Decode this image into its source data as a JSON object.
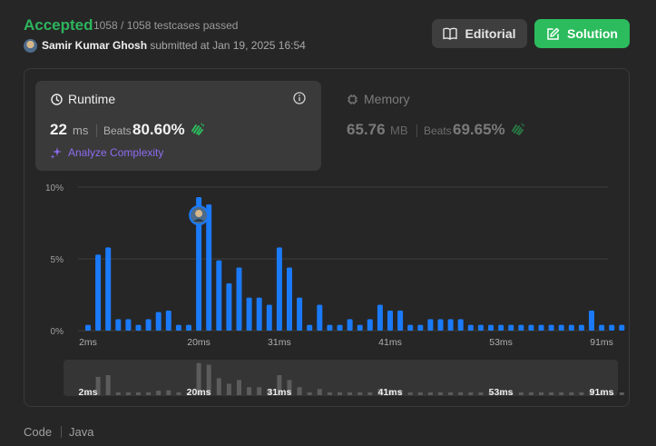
{
  "status": {
    "label": "Accepted",
    "testcases": "1058 / 1058 testcases passed"
  },
  "submission": {
    "user": "Samir Kumar Ghosh",
    "text": "submitted at Jan 19, 2025 16:54"
  },
  "buttons": {
    "editorial": "Editorial",
    "solution": "Solution"
  },
  "runtime": {
    "title": "Runtime",
    "value": "22",
    "unit": "ms",
    "beats_label": "Beats",
    "beats_value": "80.60%",
    "analyze_label": "Analyze Complexity"
  },
  "memory": {
    "title": "Memory",
    "value": "65.76",
    "unit": "MB",
    "beats_label": "Beats",
    "beats_value": "69.65%"
  },
  "code": {
    "label": "Code",
    "language": "Java"
  },
  "colors": {
    "accent_green": "#2cbb5d",
    "bar_blue": "#1a7af8",
    "analyze_purple": "#8d6cf0"
  },
  "chart_data": {
    "type": "bar",
    "y_ticks": [
      "10%",
      "5%",
      "0%"
    ],
    "ylim": [
      0,
      10
    ],
    "x_tick_labels": [
      "2ms",
      "20ms",
      "31ms",
      "41ms",
      "53ms",
      "91ms"
    ],
    "x_tick_positions": [
      0,
      11,
      19,
      30,
      41,
      51
    ],
    "highlight_index": 11,
    "values": [
      0.4,
      5.3,
      5.8,
      0.8,
      0.8,
      0.4,
      0.8,
      1.3,
      1.4,
      0.4,
      0.4,
      9.3,
      8.8,
      4.9,
      3.3,
      4.4,
      2.3,
      2.3,
      1.8,
      5.8,
      4.4,
      2.3,
      0.4,
      1.8,
      0.4,
      0.4,
      0.8,
      0.4,
      0.8,
      1.8,
      1.4,
      1.4,
      0.4,
      0.4,
      0.8,
      0.8,
      0.8,
      0.8,
      0.4,
      0.4,
      0.4,
      0.4,
      0.4,
      0.4,
      0.4,
      0.4,
      0.4,
      0.4,
      0.4,
      0.4,
      1.4,
      0.4,
      0.4,
      0.4
    ]
  }
}
